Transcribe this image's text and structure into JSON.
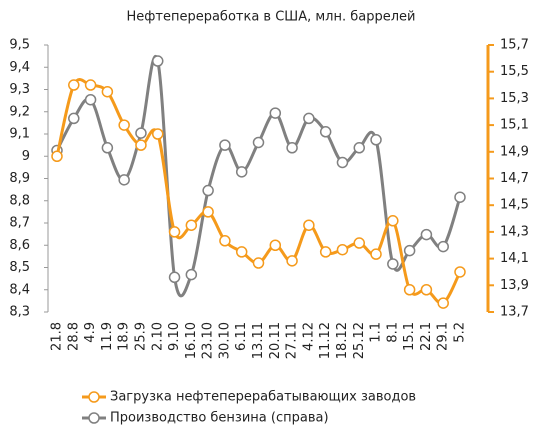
{
  "chart_data": {
    "type": "line",
    "title": "Нефтепереработка в США, млн. баррелей",
    "categories": [
      "21.8",
      "28.8",
      "4.9",
      "11.9",
      "18.9",
      "25.9",
      "2.10",
      "9.10",
      "16.10",
      "23.10",
      "30.10",
      "6.11",
      "13.11",
      "20.11",
      "27.11",
      "4.12",
      "11.12",
      "18.12",
      "25.12",
      "1.1",
      "8.1",
      "15.1",
      "22.1",
      "29.1",
      "5.2"
    ],
    "series": [
      {
        "name": "Загрузка нефтеперерабатывающих заводов",
        "color": "#f59a1b",
        "values": [
          9.0,
          9.32,
          9.32,
          9.29,
          9.14,
          9.05,
          9.1,
          8.66,
          8.69,
          8.75,
          8.62,
          8.57,
          8.52,
          8.6,
          8.53,
          8.69,
          8.57,
          8.58,
          8.61,
          8.56,
          8.71,
          8.4,
          8.4,
          8.34,
          8.48
        ]
      },
      {
        "name": "Производство бензина (справа)",
        "color": "#808080",
        "axis": "y2",
        "values": [
          14.91,
          15.15,
          15.29,
          14.93,
          14.69,
          15.04,
          15.58,
          13.96,
          13.98,
          14.61,
          14.95,
          14.75,
          14.97,
          15.19,
          14.93,
          15.15,
          15.05,
          14.82,
          14.93,
          14.99,
          14.06,
          14.16,
          14.28,
          14.19,
          14.56
        ]
      }
    ],
    "ylim": [
      8.3,
      9.5
    ],
    "yticks": [
      {
        "value": 8.3,
        "label": "8,3"
      },
      {
        "value": 8.4,
        "label": "8,4"
      },
      {
        "value": 8.5,
        "label": "8,5"
      },
      {
        "value": 8.6,
        "label": "8,6"
      },
      {
        "value": 8.7,
        "label": "8,7"
      },
      {
        "value": 8.8,
        "label": "8,8"
      },
      {
        "value": 8.9,
        "label": "8,9"
      },
      9,
      {
        "value": 9.1,
        "label": "9,1"
      },
      {
        "value": 9.2,
        "label": "9,2"
      },
      {
        "value": 9.3,
        "label": "9,3"
      },
      {
        "value": 9.4,
        "label": "9,4"
      },
      {
        "value": 9.5,
        "label": "9,5"
      }
    ],
    "y2lim": [
      13.7,
      15.7
    ],
    "y2ticks": [
      {
        "value": 13.7,
        "label": "13,7"
      },
      {
        "value": 13.9,
        "label": "13,9"
      },
      {
        "value": 14.1,
        "label": "14,1"
      },
      {
        "value": 14.3,
        "label": "14,3"
      },
      {
        "value": 14.5,
        "label": "14,5"
      },
      {
        "value": 14.7,
        "label": "14,7"
      },
      {
        "value": 14.9,
        "label": "14,9"
      },
      {
        "value": 15.1,
        "label": "15,1"
      },
      {
        "value": 15.3,
        "label": "15,3"
      },
      {
        "value": 15.5,
        "label": "15,5"
      },
      {
        "value": 15.7,
        "label": "15,7"
      }
    ],
    "y2color": "#f59a1b",
    "grid": false,
    "legend": "bottom"
  }
}
